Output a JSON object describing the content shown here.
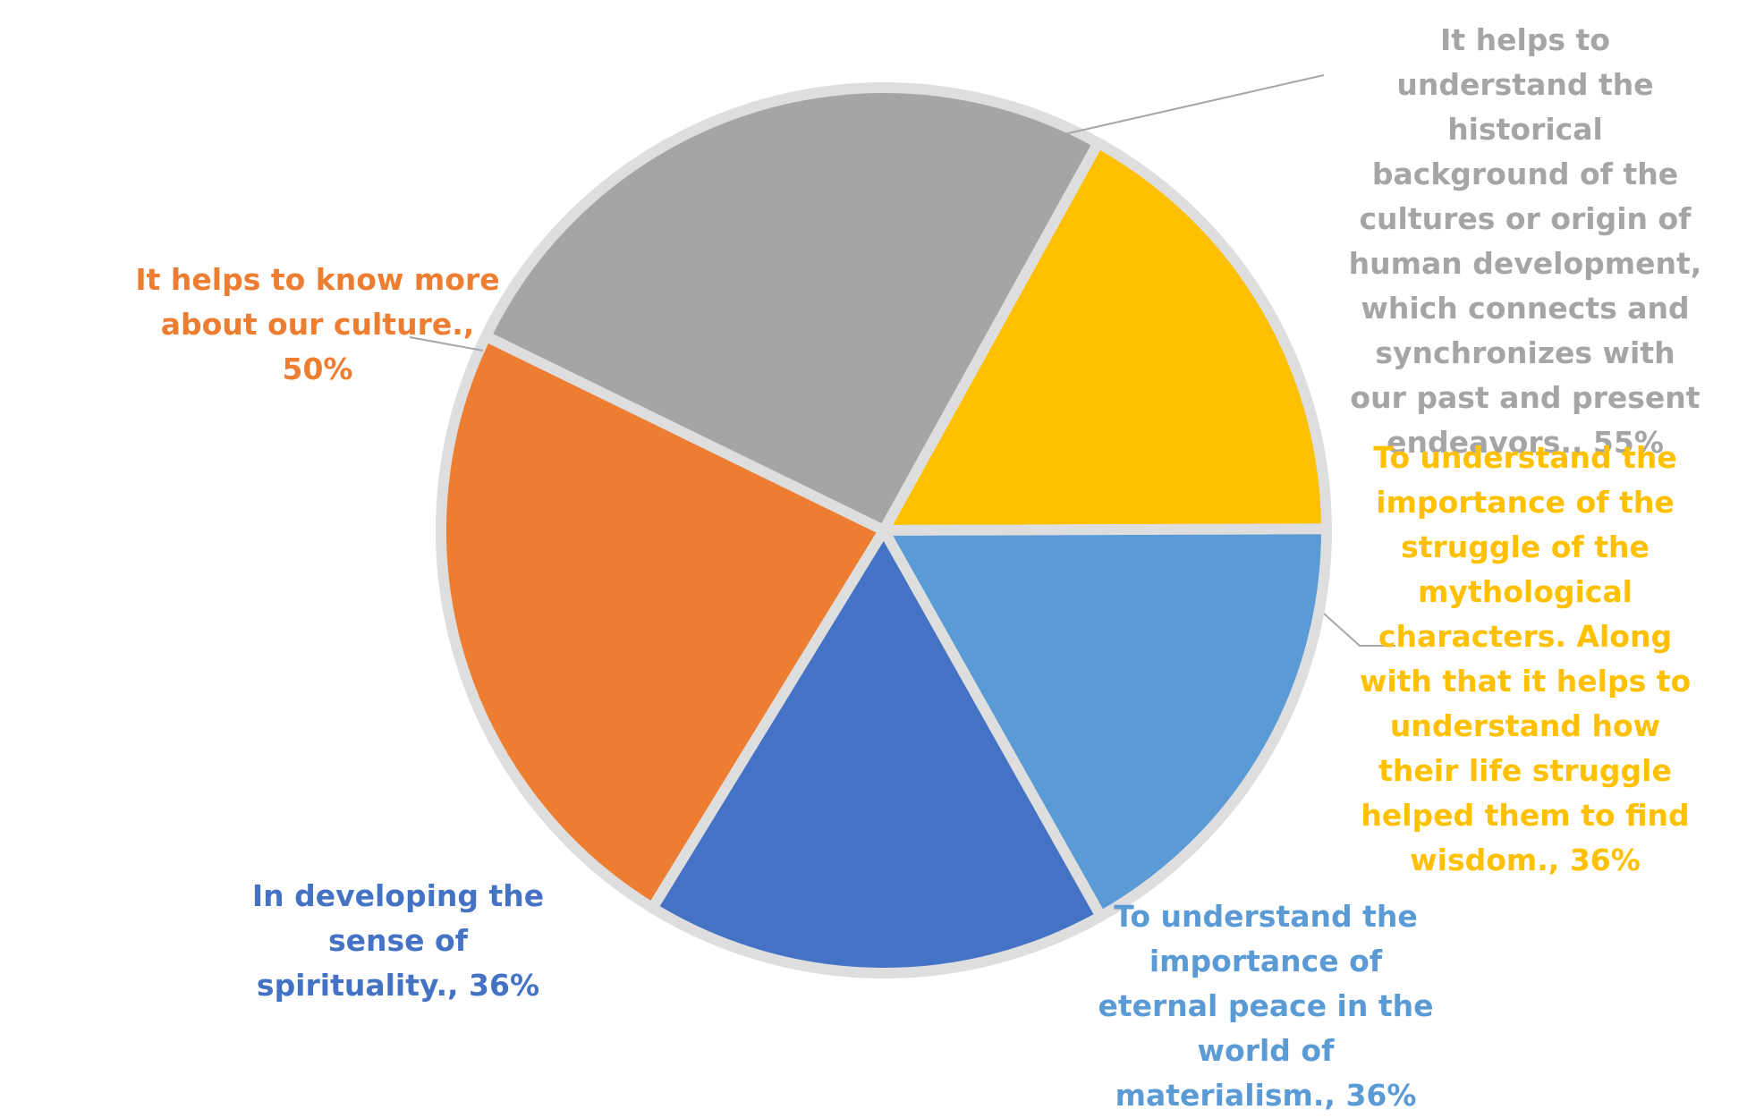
{
  "chart_data": {
    "type": "pie",
    "slices": [
      {
        "label": "It helps to understand the historical background of the cultures or origin of human development, which connects and synchronizes with our past and present endeavors., 55%",
        "value": 55,
        "color": "#A5A5A5",
        "label_color": "#A5A5A5"
      },
      {
        "label": "To understand the importance of the struggle of the mythological characters. Along with that it helps to understand how their life struggle helped them to find wisdom., 36%",
        "value": 36,
        "color": "#FFC000",
        "label_color": "#FFC000"
      },
      {
        "label": "To understand the importance of eternal peace in the world of materialism., 36%",
        "value": 36,
        "color": "#5B9BD5",
        "label_color": "#5B9BD5"
      },
      {
        "label": "In developing the sense of spirituality., 36%",
        "value": 36,
        "color": "#4472C4",
        "label_color": "#4472C4"
      },
      {
        "label": "It helps to know more about our culture., 50%",
        "value": 50,
        "color": "#ED7D31",
        "label_color": "#ED7D31"
      }
    ],
    "separator_color": "#DEDEDE",
    "leader_line_color": "#A6A6A6"
  }
}
